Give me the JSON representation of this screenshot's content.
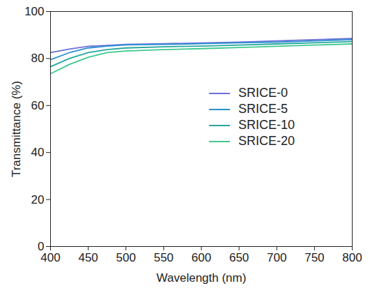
{
  "chart_data": {
    "type": "line",
    "x_label": "Wavelength (nm)",
    "y_label": "Transmittance (%)",
    "x": [
      400,
      425,
      450,
      475,
      500,
      550,
      600,
      650,
      700,
      750,
      800
    ],
    "series": [
      {
        "name": "SRICE-0",
        "color": "#6b70d9",
        "values": [
          82.5,
          84,
          85.2,
          85.6,
          86,
          86.3,
          86.6,
          87,
          87.5,
          88,
          88.5
        ]
      },
      {
        "name": "SRICE-5",
        "color": "#2b8fd2",
        "values": [
          79.5,
          82.5,
          84.5,
          85.3,
          85.8,
          86,
          86.3,
          86.7,
          87,
          87.5,
          88
        ]
      },
      {
        "name": "SRICE-10",
        "color": "#26a79b",
        "values": [
          76.5,
          80,
          82.5,
          83.8,
          84.5,
          85,
          85.3,
          85.7,
          86.2,
          86.7,
          87.2
        ]
      },
      {
        "name": "SRICE-20",
        "color": "#3ec88e",
        "values": [
          73.5,
          77.5,
          80.5,
          82.5,
          83.2,
          83.8,
          84.2,
          84.7,
          85.2,
          85.7,
          86.2
        ]
      }
    ],
    "xlim": [
      400,
      800
    ],
    "xticks": [
      400,
      450,
      500,
      550,
      600,
      650,
      700,
      750,
      800
    ],
    "ylim": [
      0,
      100
    ],
    "yticks": [
      0,
      20,
      40,
      60,
      80,
      100
    ],
    "legend": "right",
    "grid": false
  }
}
